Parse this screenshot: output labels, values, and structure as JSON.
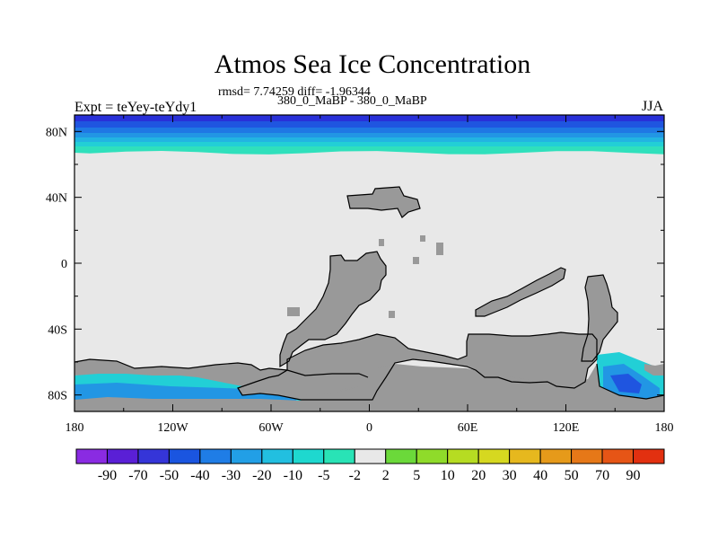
{
  "chart_data": {
    "type": "heatmap",
    "title": "Atmos Sea Ice Concentration",
    "stats_text": "rmsd= 7.74259 diff= -1.96344",
    "comparison": "380_0_MaBP - 380_0_MaBP",
    "experiment": "Expt = teYey-teYdy1",
    "season": "JJA",
    "x_ticks": [
      "180",
      "120W",
      "60W",
      "0",
      "60E",
      "120E",
      "180"
    ],
    "y_ticks": [
      "80N",
      "40N",
      "0",
      "40S",
      "80S"
    ],
    "xlim": [
      -180,
      180
    ],
    "ylim": [
      -90,
      90
    ],
    "colorbar": {
      "labels": [
        "-90",
        "-70",
        "-50",
        "-40",
        "-30",
        "-20",
        "-10",
        "-5",
        "-2",
        "2",
        "5",
        "10",
        "20",
        "30",
        "40",
        "50",
        "70",
        "90"
      ],
      "colors": [
        "#8a2be2",
        "#5a1fd6",
        "#3535d8",
        "#1a55e0",
        "#1f7de6",
        "#229fe6",
        "#22bfe0",
        "#1ed8cf",
        "#29e3b6",
        "#e8e8e8",
        "#6bd93a",
        "#8fdb2a",
        "#b6dc22",
        "#d6d820",
        "#e6b81e",
        "#e69a1a",
        "#e67818",
        "#e65516",
        "#e23010"
      ]
    },
    "colors": {
      "land": "#999999",
      "zero_change": "#e8e8e8",
      "arctic_bands": [
        "#2830d8",
        "#1f55e0",
        "#1f78e4",
        "#2296e4",
        "#22b4e2",
        "#22cfd6",
        "#2fe0bc"
      ]
    }
  }
}
